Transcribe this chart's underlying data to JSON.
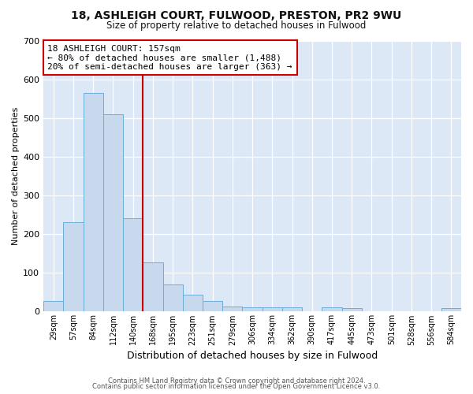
{
  "title1": "18, ASHLEIGH COURT, FULWOOD, PRESTON, PR2 9WU",
  "title2": "Size of property relative to detached houses in Fulwood",
  "xlabel": "Distribution of detached houses by size in Fulwood",
  "ylabel": "Number of detached properties",
  "categories": [
    "29sqm",
    "57sqm",
    "84sqm",
    "112sqm",
    "140sqm",
    "168sqm",
    "195sqm",
    "223sqm",
    "251sqm",
    "279sqm",
    "306sqm",
    "334sqm",
    "362sqm",
    "390sqm",
    "417sqm",
    "445sqm",
    "473sqm",
    "501sqm",
    "528sqm",
    "556sqm",
    "584sqm"
  ],
  "values": [
    28,
    230,
    565,
    510,
    242,
    128,
    70,
    43,
    27,
    14,
    10,
    10,
    10,
    0,
    10,
    8,
    0,
    0,
    0,
    0,
    8
  ],
  "bar_color": "#c8d9ee",
  "bar_edge_color": "#6aaed6",
  "vline_x": 5.0,
  "vline_color": "#cc0000",
  "annotation_title": "18 ASHLEIGH COURT: 157sqm",
  "annotation_line1": "← 80% of detached houses are smaller (1,488)",
  "annotation_line2": "20% of semi-detached houses are larger (363) →",
  "annotation_box_facecolor": "#ffffff",
  "annotation_box_edgecolor": "#cc0000",
  "fig_background": "#ffffff",
  "plot_background": "#dce8f5",
  "ylim": [
    0,
    700
  ],
  "yticks": [
    0,
    100,
    200,
    300,
    400,
    500,
    600,
    700
  ],
  "footer1": "Contains HM Land Registry data © Crown copyright and database right 2024.",
  "footer2": "Contains public sector information licensed under the Open Government Licence v3.0."
}
